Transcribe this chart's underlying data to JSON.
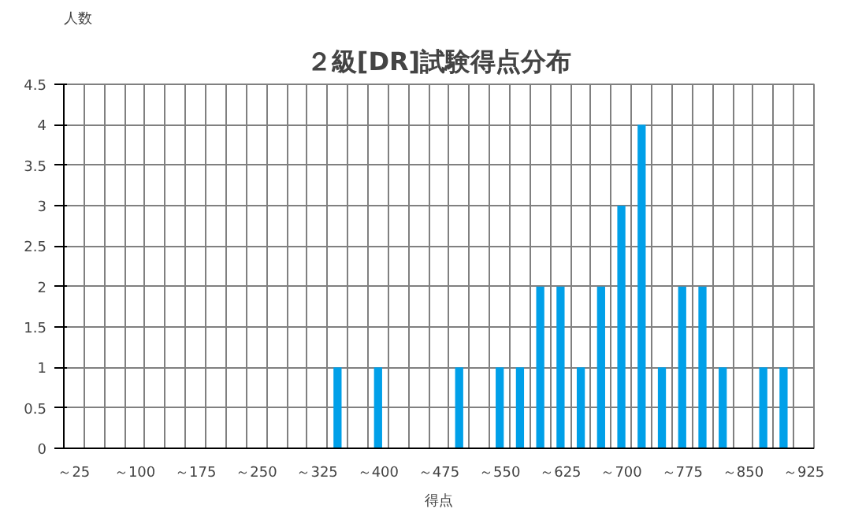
{
  "chart_data": {
    "type": "bar",
    "title": "２級[DR]試験得点分布",
    "xlabel": "得点",
    "ylabel": "人数",
    "categories": [
      "～25",
      null,
      null,
      "～100",
      null,
      null,
      "～175",
      null,
      null,
      "～250",
      null,
      null,
      "～325",
      null,
      null,
      "～400",
      null,
      null,
      "～475",
      null,
      null,
      "～550",
      null,
      null,
      "～625",
      null,
      null,
      "～700",
      null,
      null,
      "～775",
      null,
      null,
      "～850",
      null,
      null,
      "～925"
    ],
    "values": [
      0,
      0,
      0,
      0,
      0,
      0,
      0,
      0,
      0,
      0,
      0,
      0,
      0,
      1,
      0,
      1,
      0,
      0,
      0,
      1,
      0,
      1,
      1,
      2,
      2,
      1,
      2,
      3,
      4,
      1,
      2,
      2,
      1,
      0,
      1,
      1,
      0
    ],
    "color": "#00a0e9",
    "ylim": [
      0,
      4.5
    ],
    "yticks": [
      0,
      0.5,
      1,
      1.5,
      2,
      2.5,
      3,
      3.5,
      4,
      4.5
    ],
    "grid": true
  }
}
